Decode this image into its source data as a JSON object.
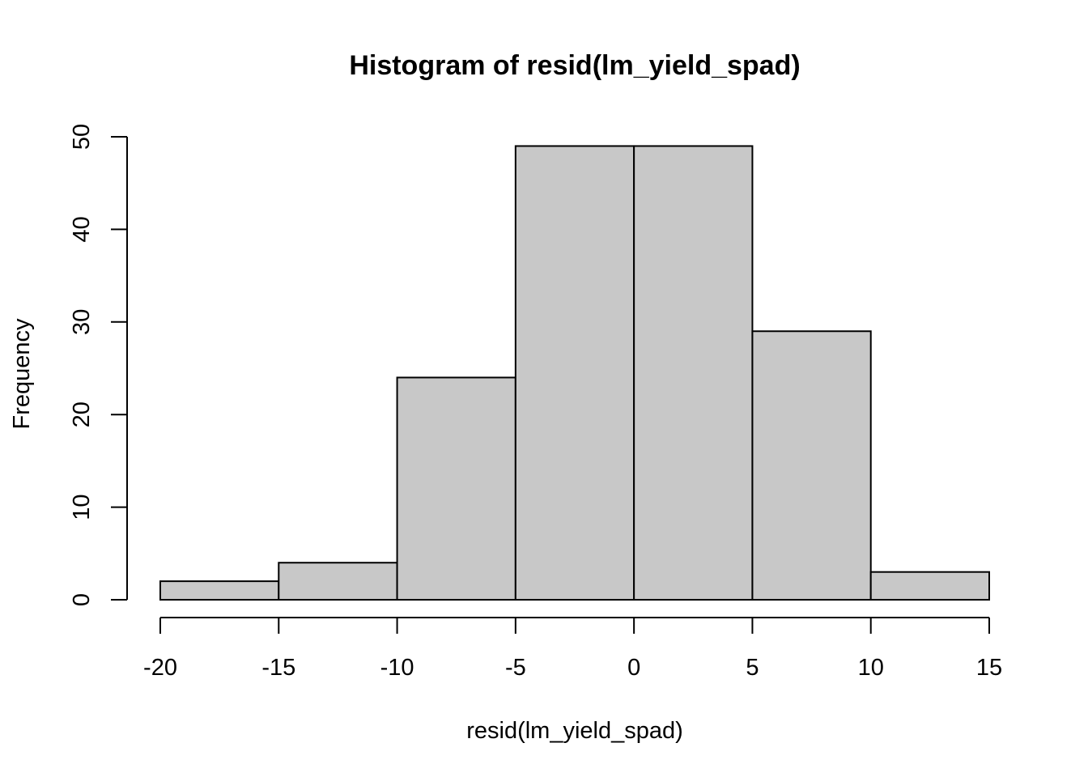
{
  "chart_data": {
    "type": "bar",
    "title": "Histogram of resid(lm_yield_spad)",
    "xlabel": "resid(lm_yield_spad)",
    "ylabel": "Frequency",
    "bins": [
      {
        "start": -20,
        "end": -15,
        "count": 2
      },
      {
        "start": -15,
        "end": -10,
        "count": 4
      },
      {
        "start": -10,
        "end": -5,
        "count": 24
      },
      {
        "start": -5,
        "end": 0,
        "count": 49
      },
      {
        "start": 0,
        "end": 5,
        "count": 49
      },
      {
        "start": 5,
        "end": 10,
        "count": 29
      },
      {
        "start": 10,
        "end": 15,
        "count": 3
      }
    ],
    "x_ticks": [
      "-20",
      "-15",
      "-10",
      "-5",
      "0",
      "5",
      "10",
      "15"
    ],
    "y_ticks": [
      "0",
      "10",
      "20",
      "30",
      "40",
      "50"
    ],
    "xlim": [
      -20,
      15
    ],
    "ylim": [
      0,
      50
    ],
    "grid": false,
    "bar_color": "#c8c8c8"
  }
}
